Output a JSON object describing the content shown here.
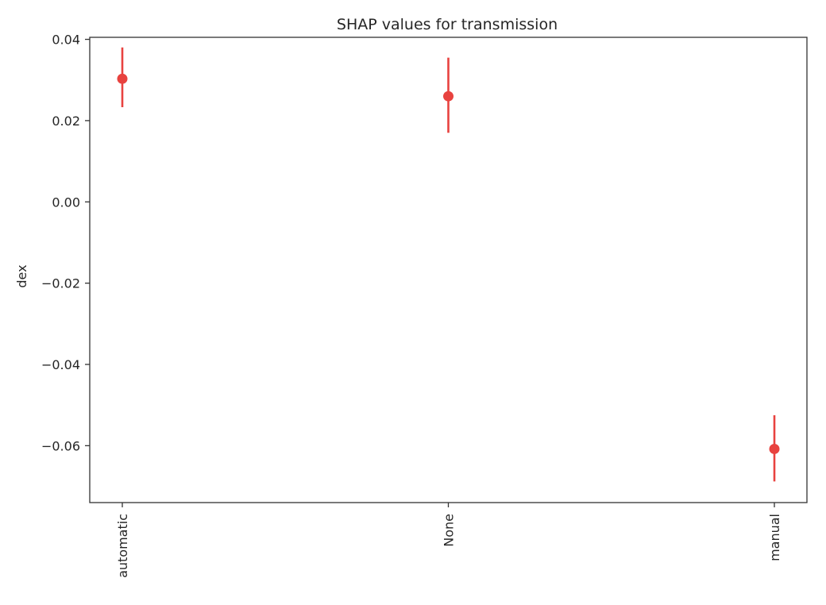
{
  "chart_data": {
    "type": "scatter",
    "title": "SHAP values for transmission",
    "xlabel": "",
    "ylabel": "dex",
    "categories": [
      "automatic",
      "None",
      "manual"
    ],
    "series": [
      {
        "values": [
          0.0303,
          0.026,
          -0.0608
        ],
        "err_low": [
          0.0233,
          0.017,
          -0.0688
        ],
        "err_high": [
          0.038,
          0.0355,
          -0.0525
        ]
      }
    ],
    "ylim": [
      -0.074,
      0.0405
    ],
    "yticks": [
      0.04,
      0.02,
      0.0,
      -0.02,
      -0.04,
      -0.06
    ],
    "ytick_labels": [
      "0.04",
      "0.02",
      "0.00",
      "−0.02",
      "−0.04",
      "−0.06"
    ],
    "marker_color": "#e8423f",
    "grid": false,
    "legend": "none"
  }
}
